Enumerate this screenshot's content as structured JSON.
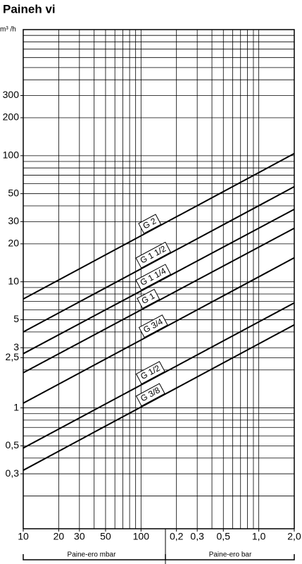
{
  "chart_data": {
    "type": "line",
    "title": "Paineh vi",
    "ylabel": "m³ /h",
    "xlabels": [
      "Paine-ero mbar",
      "Paine-ero bar"
    ],
    "x": [
      10,
      2000
    ],
    "series": [
      {
        "name": "G 2",
        "color": "#000000",
        "values": [
          7.3,
          104
        ]
      },
      {
        "name": "G 1 1/2",
        "color": "#000000",
        "values": [
          4.0,
          56.8
        ]
      },
      {
        "name": "G 1 1/4",
        "color": "#000000",
        "values": [
          2.69,
          37.6
        ]
      },
      {
        "name": "G 1",
        "color": "#000000",
        "values": [
          1.9,
          26.6
        ]
      },
      {
        "name": "G 3/4",
        "color": "#000000",
        "values": [
          1.09,
          15.5
        ]
      },
      {
        "name": "G 1/2",
        "color": "#000000",
        "values": [
          0.48,
          6.8
        ]
      },
      {
        "name": "G 3/8",
        "color": "#000000",
        "values": [
          0.32,
          4.56
        ]
      }
    ],
    "xlog": true,
    "ylog": true,
    "xlim": [
      10,
      2000
    ],
    "ylim": [
      0.11,
      1000
    ],
    "xticks": [
      10,
      20,
      30,
      50,
      100,
      {
        "value": 200,
        "label": "0,2"
      },
      {
        "value": 300,
        "label": "0,3"
      },
      {
        "value": 500,
        "label": "0,5"
      },
      {
        "value": 1000,
        "label": "1,0"
      },
      {
        "value": 2000,
        "label": "2,0"
      }
    ],
    "yticks": [
      {
        "value": 0.3,
        "label": "0,3"
      },
      {
        "value": 0.5,
        "label": "0,5"
      },
      1,
      {
        "value": 2.5,
        "label": "2,5"
      },
      3,
      5,
      10,
      20,
      30,
      50,
      100,
      200,
      300
    ],
    "xgrid": [
      20,
      30,
      40,
      50,
      60,
      70,
      80,
      90,
      100,
      200,
      300,
      400,
      500,
      600,
      700,
      800,
      900,
      1000
    ],
    "ygrid": [
      0.2,
      0.3,
      0.4,
      0.5,
      0.6,
      0.7,
      0.8,
      0.9,
      1,
      2,
      2.5,
      3,
      4,
      5,
      6,
      7,
      8,
      9,
      10,
      20,
      30,
      40,
      50,
      60,
      70,
      80,
      90,
      100,
      200,
      300,
      400,
      500,
      600,
      700,
      800,
      900
    ],
    "grid": true
  }
}
